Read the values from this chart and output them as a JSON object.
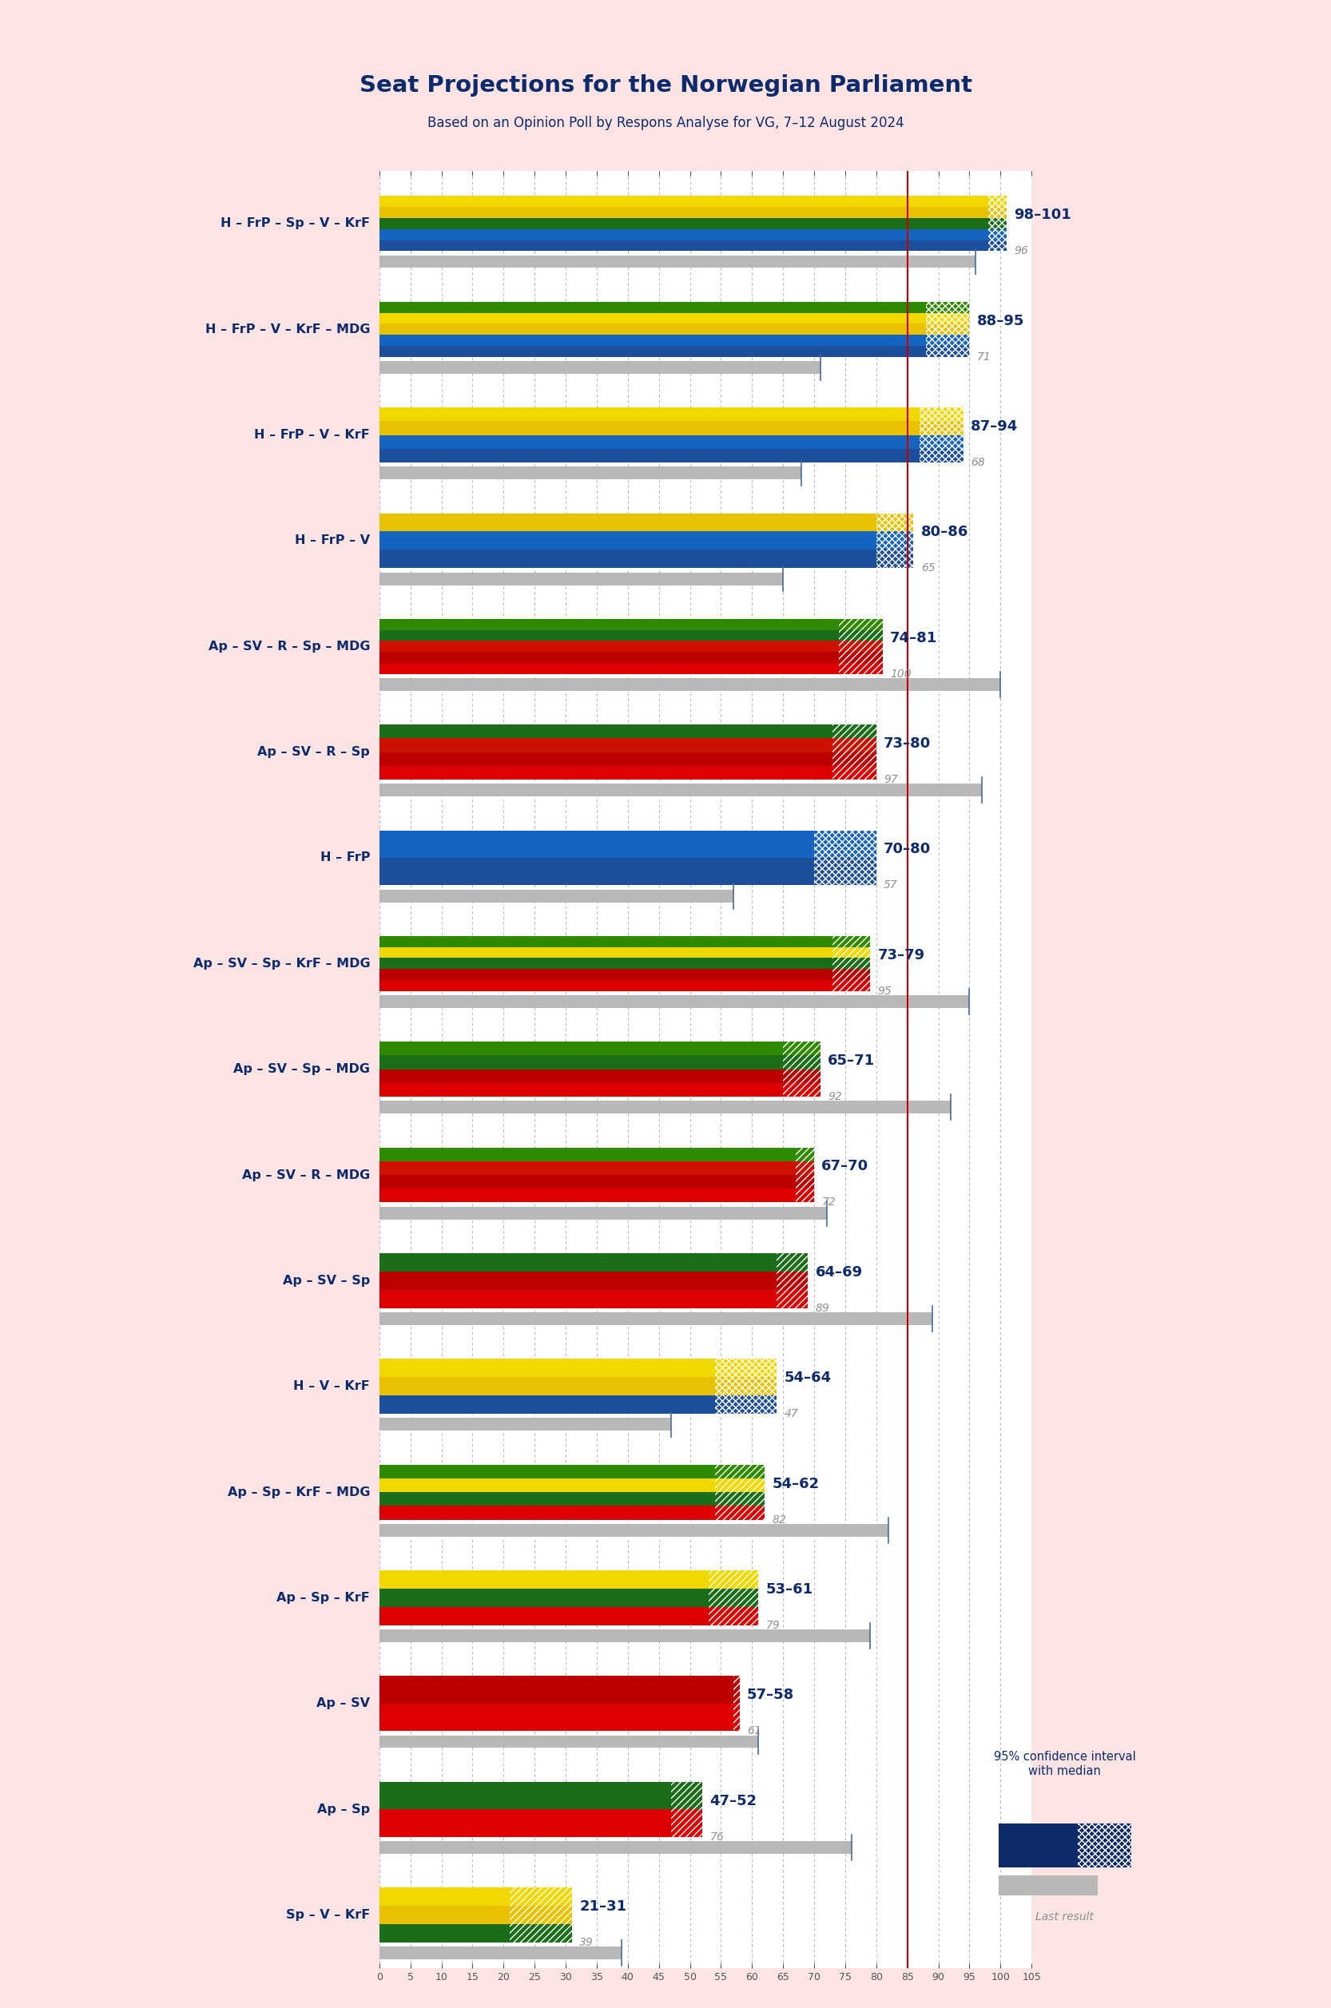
{
  "title": "Seat Projections for the Norwegian Parliament",
  "subtitle": "Based on an Opinion Poll by Respons Analyse for VG, 7–12 August 2024",
  "bg_color": "#fce4e4",
  "bar_bg_color": "#ffffff",
  "majority_line": 85,
  "x_max": 105,
  "tick_interval": 5,
  "coalitions": [
    {
      "label": "H – FrP – Sp – V – KrF",
      "range_low": 98,
      "range_high": 101,
      "last": 96,
      "parties": [
        "H",
        "FrP",
        "Sp",
        "V",
        "KrF"
      ],
      "is_right": true,
      "underline": false
    },
    {
      "label": "H – FrP – V – KrF – MDG",
      "range_low": 88,
      "range_high": 95,
      "last": 71,
      "parties": [
        "H",
        "FrP",
        "V",
        "KrF",
        "MDG"
      ],
      "is_right": true,
      "underline": false
    },
    {
      "label": "H – FrP – V – KrF",
      "range_low": 87,
      "range_high": 94,
      "last": 68,
      "parties": [
        "H",
        "FrP",
        "V",
        "KrF"
      ],
      "is_right": true,
      "underline": false
    },
    {
      "label": "H – FrP – V",
      "range_low": 80,
      "range_high": 86,
      "last": 65,
      "parties": [
        "H",
        "FrP",
        "V"
      ],
      "is_right": true,
      "underline": false
    },
    {
      "label": "Ap – SV – R – Sp – MDG",
      "range_low": 74,
      "range_high": 81,
      "last": 100,
      "parties": [
        "Ap",
        "SV",
        "R",
        "Sp",
        "MDG"
      ],
      "is_right": false,
      "underline": false
    },
    {
      "label": "Ap – SV – R – Sp",
      "range_low": 73,
      "range_high": 80,
      "last": 97,
      "parties": [
        "Ap",
        "SV",
        "R",
        "Sp"
      ],
      "is_right": false,
      "underline": false
    },
    {
      "label": "H – FrP",
      "range_low": 70,
      "range_high": 80,
      "last": 57,
      "parties": [
        "H",
        "FrP"
      ],
      "is_right": true,
      "underline": false
    },
    {
      "label": "Ap – SV – Sp – KrF – MDG",
      "range_low": 73,
      "range_high": 79,
      "last": 95,
      "parties": [
        "Ap",
        "SV",
        "Sp",
        "KrF",
        "MDG"
      ],
      "is_right": false,
      "underline": false
    },
    {
      "label": "Ap – SV – Sp – MDG",
      "range_low": 65,
      "range_high": 71,
      "last": 92,
      "parties": [
        "Ap",
        "SV",
        "Sp",
        "MDG"
      ],
      "is_right": false,
      "underline": false
    },
    {
      "label": "Ap – SV – R – MDG",
      "range_low": 67,
      "range_high": 70,
      "last": 72,
      "parties": [
        "Ap",
        "SV",
        "R",
        "MDG"
      ],
      "is_right": false,
      "underline": false
    },
    {
      "label": "Ap – SV – Sp",
      "range_low": 64,
      "range_high": 69,
      "last": 89,
      "parties": [
        "Ap",
        "SV",
        "Sp"
      ],
      "is_right": false,
      "underline": false
    },
    {
      "label": "H – V – KrF",
      "range_low": 54,
      "range_high": 64,
      "last": 47,
      "parties": [
        "H",
        "V",
        "KrF"
      ],
      "is_right": true,
      "underline": false
    },
    {
      "label": "Ap – Sp – KrF – MDG",
      "range_low": 54,
      "range_high": 62,
      "last": 82,
      "parties": [
        "Ap",
        "Sp",
        "KrF",
        "MDG"
      ],
      "is_right": false,
      "underline": false
    },
    {
      "label": "Ap – Sp – KrF",
      "range_low": 53,
      "range_high": 61,
      "last": 79,
      "parties": [
        "Ap",
        "Sp",
        "KrF"
      ],
      "is_right": false,
      "underline": false
    },
    {
      "label": "Ap – SV",
      "range_low": 57,
      "range_high": 58,
      "last": 61,
      "parties": [
        "Ap",
        "SV"
      ],
      "is_right": false,
      "underline": true
    },
    {
      "label": "Ap – Sp",
      "range_low": 47,
      "range_high": 52,
      "last": 76,
      "parties": [
        "Ap",
        "Sp"
      ],
      "is_right": false,
      "underline": false
    },
    {
      "label": "Sp – V – KrF",
      "range_low": 21,
      "range_high": 31,
      "last": 39,
      "parties": [
        "Sp",
        "V",
        "KrF"
      ],
      "is_right": false,
      "underline": false
    }
  ],
  "party_colors": {
    "H": "#1b4f9c",
    "FrP": "#1565c0",
    "V": "#e8c200",
    "KrF": "#f0d800",
    "Sp": "#1a6e1a",
    "SV": "#bb0000",
    "Ap": "#dd0000",
    "R": "#cc1100",
    "MDG": "#2e8b00"
  },
  "gray_color": "#b8b8b8",
  "majority_color": "#cc0000",
  "label_color": "#0d2a6b",
  "range_label_color": "#0d2a6b",
  "last_color": "#909090"
}
